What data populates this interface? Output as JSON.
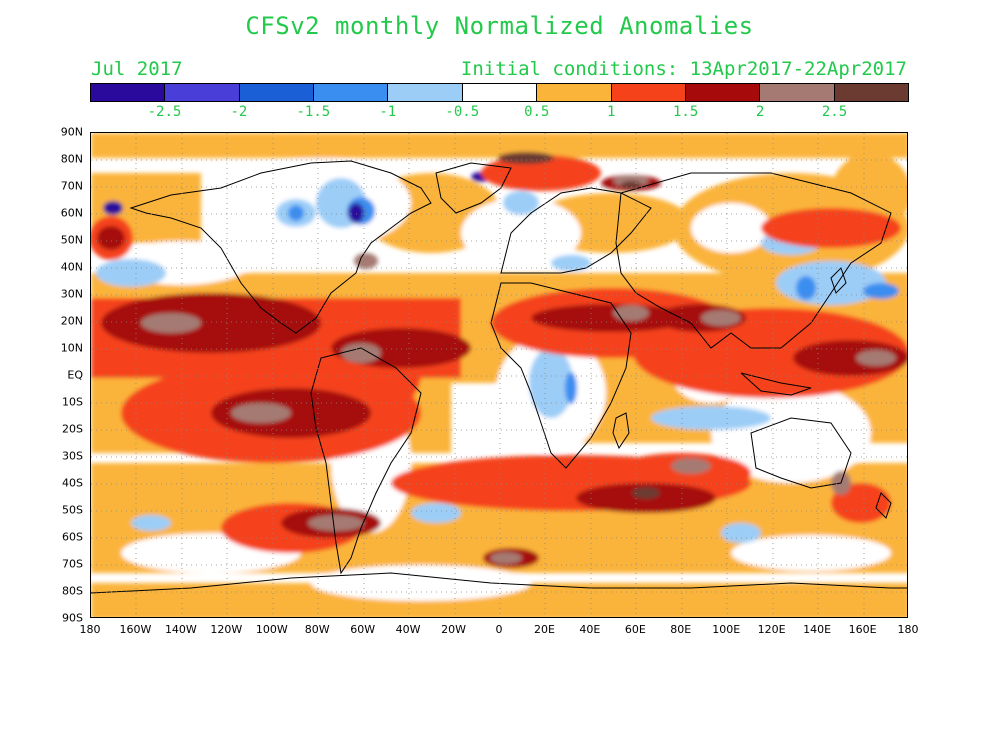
{
  "title": "CFSv2 monthly Normalized Anomalies",
  "month_label": "Jul 2017",
  "init_label": "Initial conditions: 13Apr2017-22Apr2017",
  "colorbar": {
    "colors": [
      "#2a0a9c",
      "#4a3ed8",
      "#1b5fd6",
      "#3a8ef0",
      "#9ccdf7",
      "#ffffff",
      "#fbb43a",
      "#f5421a",
      "#a60a0a",
      "#a57a72",
      "#6b3a30"
    ],
    "labels": [
      "-2.5",
      "-2",
      "-1.5",
      "-1",
      "-0.5",
      "0.5",
      "1",
      "1.5",
      "2",
      "2.5"
    ]
  },
  "map": {
    "lat_labels": [
      "90N",
      "80N",
      "70N",
      "60N",
      "50N",
      "40N",
      "30N",
      "20N",
      "10N",
      "EQ",
      "10S",
      "20S",
      "30S",
      "40S",
      "50S",
      "60S",
      "70S",
      "80S",
      "90S"
    ],
    "lon_labels": [
      "180",
      "160W",
      "140W",
      "120W",
      "100W",
      "80W",
      "60W",
      "40W",
      "20W",
      "0",
      "20E",
      "40E",
      "60E",
      "80E",
      "100E",
      "120E",
      "140E",
      "160E",
      "180"
    ]
  }
}
